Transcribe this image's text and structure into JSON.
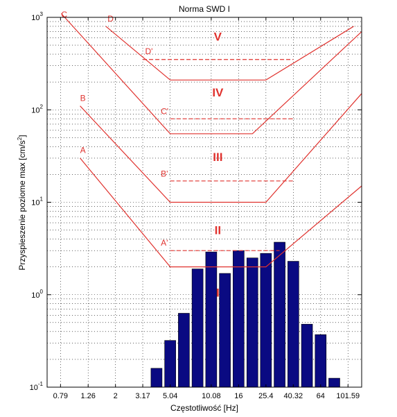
{
  "chart_data": {
    "type": "bar",
    "title": "Norma SWD I",
    "xlabel": "Częstotliwość [Hz]",
    "ylabel": "Przyspieszenie poziome max [cm/s2]",
    "xscale": "log",
    "yscale": "log",
    "xlim": [
      0.63,
      128
    ],
    "ylim": [
      0.1,
      1000
    ],
    "x_ticks": [
      0.79,
      1.26,
      2,
      3.17,
      5.04,
      10.08,
      16,
      25.4,
      40.32,
      64,
      101.59
    ],
    "x_tick_labels": [
      "0.79",
      "1.26",
      "2",
      "3.17",
      "5.04",
      "10.08",
      "16",
      "25.4",
      "40.32",
      "64",
      "101.59"
    ],
    "y_ticks": [
      0.1,
      1,
      10,
      100,
      1000
    ],
    "y_tick_labels": [
      {
        "base": "10",
        "exp": "-1"
      },
      {
        "base": "10",
        "exp": "0"
      },
      {
        "base": "10",
        "exp": "1"
      },
      {
        "base": "10",
        "exp": "2"
      },
      {
        "base": "10",
        "exp": "3"
      }
    ],
    "grid": true,
    "bar_color": "#0a0a82",
    "line_color": "#e0322e",
    "bars": {
      "x": [
        4,
        5.04,
        6.35,
        8,
        10.08,
        12.7,
        16,
        20.2,
        25.4,
        32,
        40.32,
        50.8,
        64,
        80.6
      ],
      "values": [
        0.16,
        0.32,
        0.63,
        1.9,
        2.9,
        1.7,
        3.0,
        2.5,
        2.8,
        3.7,
        2.3,
        0.48,
        0.37,
        0.125
      ]
    },
    "limit_curves": [
      {
        "name": "A",
        "x": [
          1.1,
          5.04,
          25.4,
          128
        ],
        "y": [
          30,
          2,
          2,
          15
        ]
      },
      {
        "name": "B",
        "x": [
          1.1,
          5.04,
          25.4,
          128
        ],
        "y": [
          110,
          10,
          10,
          150
        ]
      },
      {
        "name": "C",
        "x": [
          0.8,
          5.04,
          20.2,
          128
        ],
        "y": [
          1100,
          55,
          55,
          700
        ]
      },
      {
        "name": "D",
        "x": [
          1.7,
          5.04,
          25.4,
          112
        ],
        "y": [
          800,
          210,
          210,
          800
        ]
      }
    ],
    "reference_lines": [
      {
        "name": "A'",
        "x": [
          5.04,
          32
        ],
        "y": 3
      },
      {
        "name": "B'",
        "x": [
          5.04,
          40.32
        ],
        "y": 17
      },
      {
        "name": "C'",
        "x": [
          5.04,
          40.32
        ],
        "y": 80
      },
      {
        "name": "D'",
        "x": [
          3.17,
          40.32
        ],
        "y": 350
      }
    ],
    "curve_labels": [
      {
        "text": "A",
        "x": 1.1,
        "y": 34
      },
      {
        "text": "B",
        "x": 1.1,
        "y": 125
      },
      {
        "text": "C",
        "x": 0.8,
        "y": 1000
      },
      {
        "text": "D",
        "x": 1.75,
        "y": 900
      },
      {
        "text": "A'",
        "x": 4.3,
        "y": 3.4
      },
      {
        "text": "B'",
        "x": 4.3,
        "y": 19
      },
      {
        "text": "C'",
        "x": 4.3,
        "y": 90
      },
      {
        "text": "D'",
        "x": 3.3,
        "y": 400
      }
    ],
    "zone_labels": [
      {
        "text": "I",
        "x": 16,
        "y": 0.95
      },
      {
        "text": "II",
        "x": 16,
        "y": 4.5
      },
      {
        "text": "III",
        "x": 16,
        "y": 28
      },
      {
        "text": "IV",
        "x": 16,
        "y": 140
      },
      {
        "text": "V",
        "x": 16,
        "y": 560
      }
    ]
  }
}
